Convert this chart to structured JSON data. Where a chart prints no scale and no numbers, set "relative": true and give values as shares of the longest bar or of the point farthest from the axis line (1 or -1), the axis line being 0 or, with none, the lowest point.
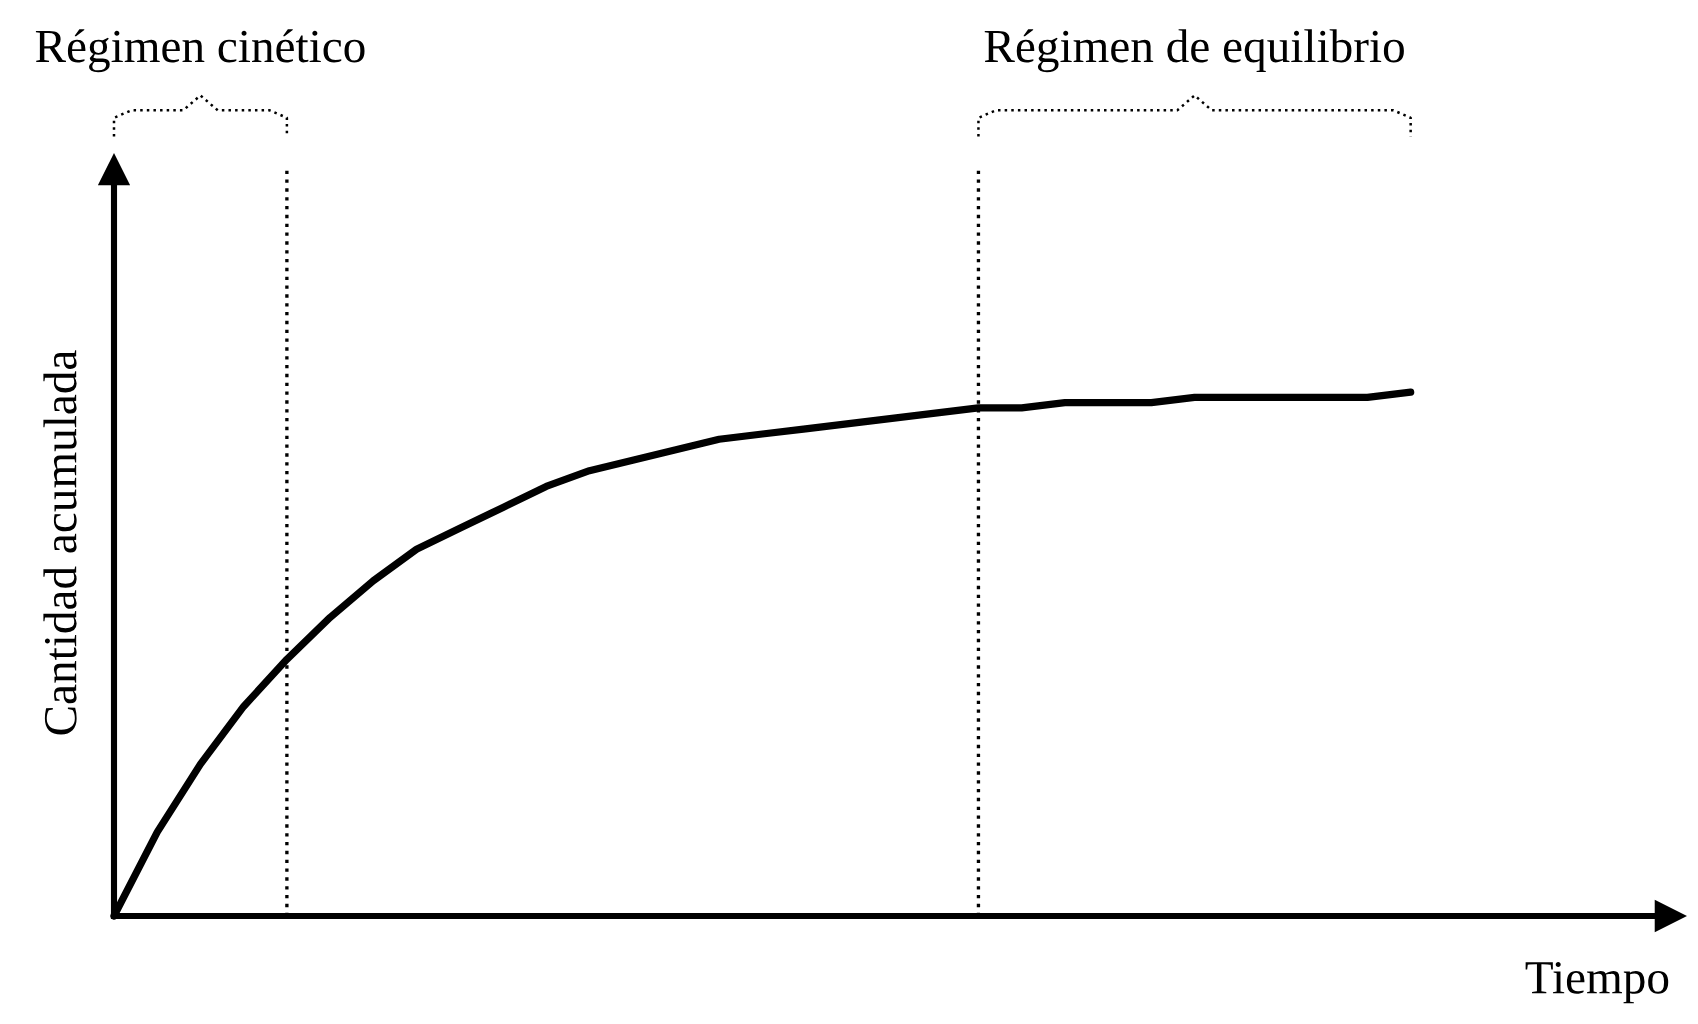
{
  "chart_data": {
    "type": "line",
    "relative": true,
    "xlabel": "Tiempo",
    "ylabel": "Cantidad acumulada",
    "categories": [
      null,
      null,
      null,
      null,
      null,
      null,
      null,
      null,
      null,
      null,
      null,
      null,
      null,
      null,
      null,
      null,
      null,
      null,
      null,
      null,
      null,
      null,
      null,
      null,
      null,
      null,
      null,
      null,
      null,
      null,
      null
    ],
    "series": [
      {
        "color": "#000000",
        "values": [
          0,
          0.16,
          0.29,
          0.4,
          0.49,
          0.57,
          0.64,
          0.7,
          0.74,
          0.78,
          0.82,
          0.85,
          0.87,
          0.89,
          0.91,
          0.92,
          0.93,
          0.94,
          0.95,
          0.96,
          0.97,
          0.97,
          0.98,
          0.98,
          0.98,
          0.99,
          0.99,
          0.99,
          0.99,
          0.99,
          1
        ]
      }
    ],
    "annotations": [
      "Régimen cinético",
      "Régimen de equilibrio"
    ],
    "tick_labels": false,
    "grid": false,
    "legend": false,
    "marker": "none",
    "line_style": "solid"
  }
}
